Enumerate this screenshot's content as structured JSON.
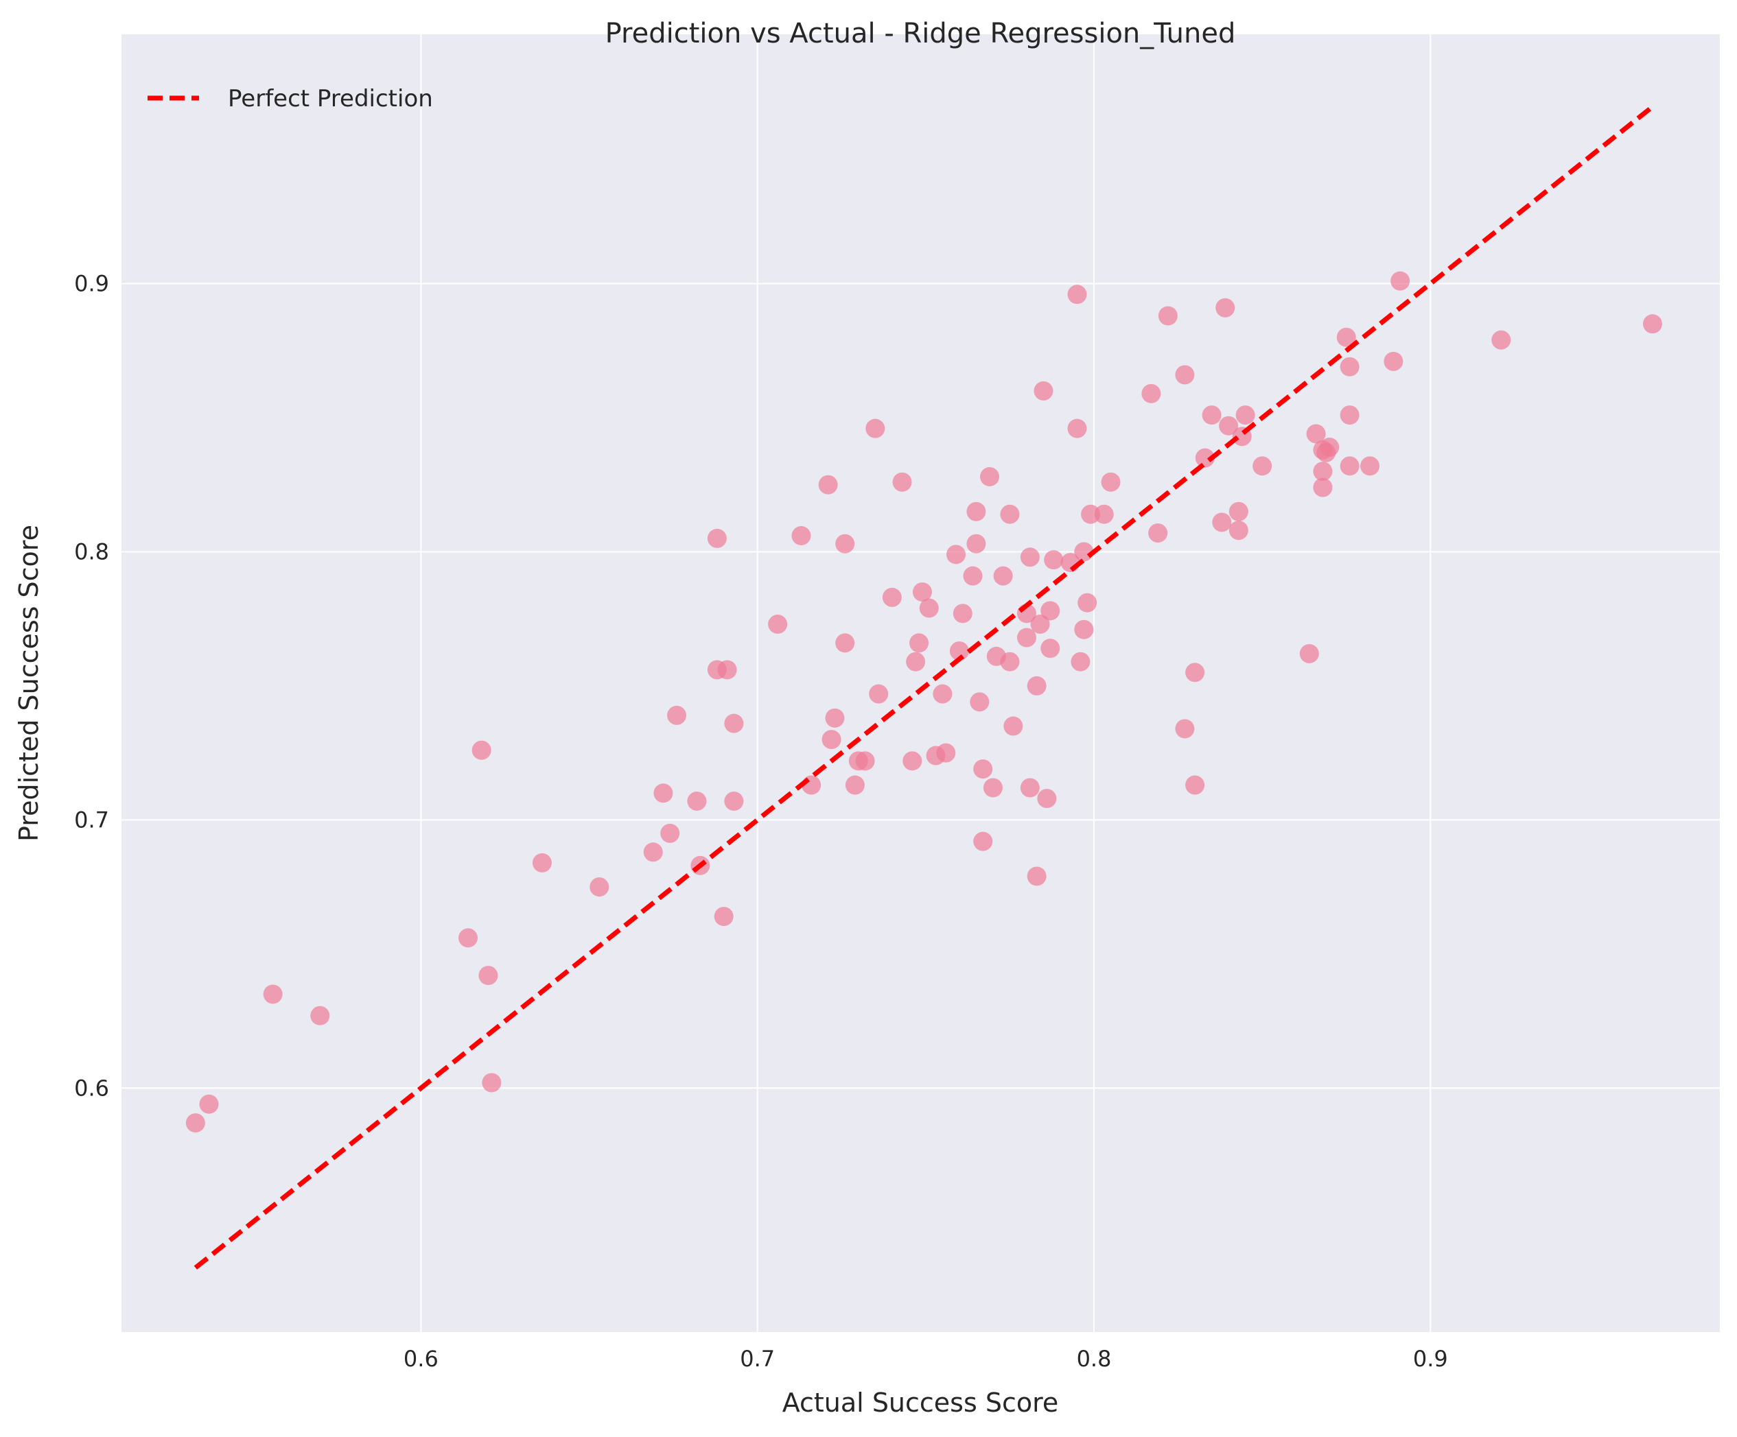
{
  "chart_data": {
    "type": "scatter",
    "title": "Prediction vs Actual - Ridge Regression_Tuned",
    "xlabel": "Actual Success Score",
    "ylabel": "Predicted Success Score",
    "xlim": [
      0.511,
      0.986
    ],
    "ylim": [
      0.509,
      0.993
    ],
    "xticks": [
      0.6,
      0.7,
      0.8,
      0.9
    ],
    "yticks": [
      0.6,
      0.7,
      0.8,
      0.9
    ],
    "grid": true,
    "legend": {
      "position": "top-left",
      "entries": [
        "Perfect Prediction"
      ]
    },
    "colors": {
      "points": "#f07b96",
      "reference_line": "#ff0000",
      "plot_background": "#eaeaf2",
      "grid": "#ffffff"
    },
    "series": [
      {
        "kind": "scatter",
        "points": [
          [
            0.533,
            0.587
          ],
          [
            0.537,
            0.594
          ],
          [
            0.556,
            0.635
          ],
          [
            0.57,
            0.627
          ],
          [
            0.614,
            0.656
          ],
          [
            0.618,
            0.726
          ],
          [
            0.62,
            0.642
          ],
          [
            0.621,
            0.602
          ],
          [
            0.636,
            0.684
          ],
          [
            0.653,
            0.675
          ],
          [
            0.669,
            0.688
          ],
          [
            0.672,
            0.71
          ],
          [
            0.674,
            0.695
          ],
          [
            0.676,
            0.739
          ],
          [
            0.682,
            0.707
          ],
          [
            0.683,
            0.683
          ],
          [
            0.688,
            0.805
          ],
          [
            0.688,
            0.756
          ],
          [
            0.69,
            0.664
          ],
          [
            0.691,
            0.756
          ],
          [
            0.693,
            0.736
          ],
          [
            0.693,
            0.707
          ],
          [
            0.706,
            0.773
          ],
          [
            0.713,
            0.806
          ],
          [
            0.716,
            0.713
          ],
          [
            0.721,
            0.825
          ],
          [
            0.722,
            0.73
          ],
          [
            0.723,
            0.738
          ],
          [
            0.726,
            0.766
          ],
          [
            0.726,
            0.803
          ],
          [
            0.729,
            0.713
          ],
          [
            0.73,
            0.722
          ],
          [
            0.732,
            0.722
          ],
          [
            0.735,
            0.846
          ],
          [
            0.736,
            0.747
          ],
          [
            0.74,
            0.783
          ],
          [
            0.743,
            0.826
          ],
          [
            0.746,
            0.722
          ],
          [
            0.747,
            0.759
          ],
          [
            0.748,
            0.766
          ],
          [
            0.749,
            0.785
          ],
          [
            0.751,
            0.779
          ],
          [
            0.753,
            0.724
          ],
          [
            0.755,
            0.747
          ],
          [
            0.756,
            0.725
          ],
          [
            0.759,
            0.799
          ],
          [
            0.76,
            0.763
          ],
          [
            0.761,
            0.777
          ],
          [
            0.764,
            0.791
          ],
          [
            0.765,
            0.803
          ],
          [
            0.765,
            0.815
          ],
          [
            0.766,
            0.744
          ],
          [
            0.767,
            0.692
          ],
          [
            0.767,
            0.719
          ],
          [
            0.769,
            0.828
          ],
          [
            0.77,
            0.712
          ],
          [
            0.771,
            0.761
          ],
          [
            0.773,
            0.791
          ],
          [
            0.775,
            0.814
          ],
          [
            0.775,
            0.759
          ],
          [
            0.776,
            0.735
          ],
          [
            0.78,
            0.777
          ],
          [
            0.78,
            0.768
          ],
          [
            0.781,
            0.712
          ],
          [
            0.781,
            0.798
          ],
          [
            0.783,
            0.75
          ],
          [
            0.783,
            0.679
          ],
          [
            0.784,
            0.773
          ],
          [
            0.785,
            0.86
          ],
          [
            0.786,
            0.708
          ],
          [
            0.787,
            0.778
          ],
          [
            0.787,
            0.764
          ],
          [
            0.788,
            0.797
          ],
          [
            0.793,
            0.796
          ],
          [
            0.795,
            0.846
          ],
          [
            0.795,
            0.896
          ],
          [
            0.796,
            0.759
          ],
          [
            0.797,
            0.771
          ],
          [
            0.797,
            0.8
          ],
          [
            0.798,
            0.781
          ],
          [
            0.799,
            0.814
          ],
          [
            0.803,
            0.814
          ],
          [
            0.805,
            0.826
          ],
          [
            0.817,
            0.859
          ],
          [
            0.819,
            0.807
          ],
          [
            0.822,
            0.888
          ],
          [
            0.827,
            0.866
          ],
          [
            0.827,
            0.734
          ],
          [
            0.83,
            0.755
          ],
          [
            0.83,
            0.713
          ],
          [
            0.833,
            0.835
          ],
          [
            0.835,
            0.851
          ],
          [
            0.838,
            0.811
          ],
          [
            0.839,
            0.891
          ],
          [
            0.84,
            0.847
          ],
          [
            0.843,
            0.815
          ],
          [
            0.843,
            0.808
          ],
          [
            0.844,
            0.843
          ],
          [
            0.845,
            0.851
          ],
          [
            0.85,
            0.832
          ],
          [
            0.864,
            0.762
          ],
          [
            0.866,
            0.844
          ],
          [
            0.868,
            0.838
          ],
          [
            0.868,
            0.824
          ],
          [
            0.868,
            0.83
          ],
          [
            0.869,
            0.837
          ],
          [
            0.87,
            0.839
          ],
          [
            0.875,
            0.88
          ],
          [
            0.876,
            0.869
          ],
          [
            0.876,
            0.851
          ],
          [
            0.876,
            0.832
          ],
          [
            0.882,
            0.832
          ],
          [
            0.889,
            0.871
          ],
          [
            0.891,
            0.901
          ],
          [
            0.921,
            0.879
          ],
          [
            0.966,
            0.885
          ]
        ]
      },
      {
        "kind": "line",
        "name": "Perfect Prediction",
        "style": "dashed",
        "points": [
          [
            0.533,
            0.533
          ],
          [
            0.966,
            0.966
          ]
        ]
      }
    ]
  }
}
